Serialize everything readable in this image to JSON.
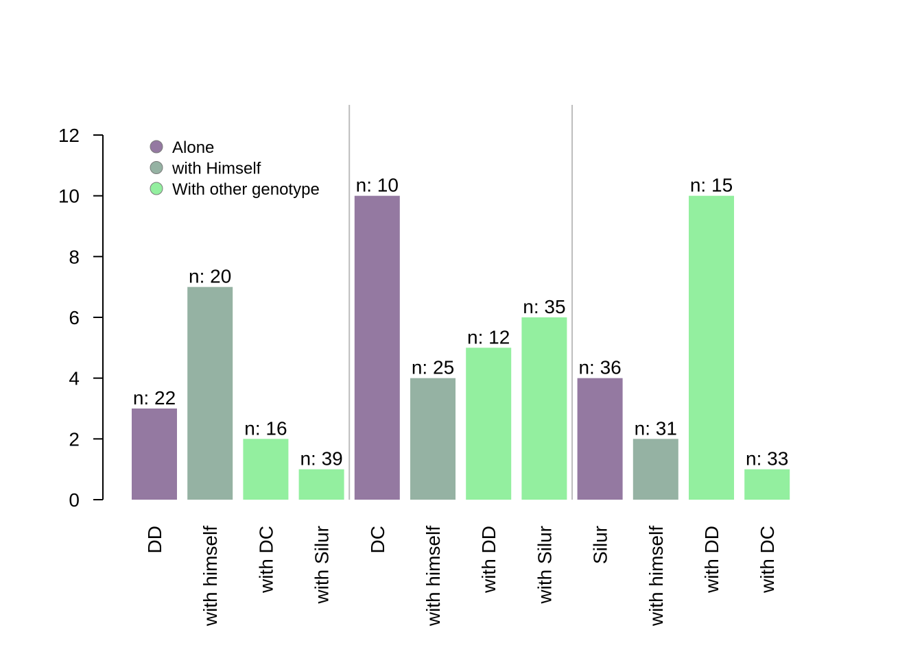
{
  "colors": {
    "alone": "#9479a1",
    "with_himself": "#95b2a3",
    "with_other": "#93ef9f"
  },
  "chart_data": {
    "type": "bar",
    "title": "",
    "xlabel": "",
    "ylabel": "",
    "ylim": [
      0,
      12
    ],
    "yticks": [
      0,
      2,
      4,
      6,
      8,
      10,
      12
    ],
    "grid": false,
    "legend": {
      "placement": "top-left",
      "entries": [
        {
          "label": "Alone",
          "group": "alone"
        },
        {
          "label": "with Himself",
          "group": "with_himself"
        },
        {
          "label": "With other genotype",
          "group": "with_other"
        }
      ]
    },
    "categories": [
      "DD",
      "with himself",
      "with DC",
      "with Silur",
      "DC",
      "with himself",
      "with DD",
      "with Silur",
      "Silur",
      "with himself",
      "with DD",
      "with DC"
    ],
    "values": [
      3,
      7,
      2,
      1,
      10,
      4,
      5,
      6,
      4,
      2,
      10,
      1
    ],
    "labels": [
      "n: 22",
      "n: 20",
      "n: 16",
      "n: 39",
      "n: 10",
      "n: 25",
      "n: 12",
      "n: 35",
      "n: 36",
      "n: 31",
      "n: 15",
      "n: 33"
    ],
    "groups": [
      "alone",
      "with_himself",
      "with_other",
      "with_other",
      "alone",
      "with_himself",
      "with_other",
      "with_other",
      "alone",
      "with_himself",
      "with_other",
      "with_other"
    ],
    "separators_after": [
      3,
      7
    ]
  }
}
